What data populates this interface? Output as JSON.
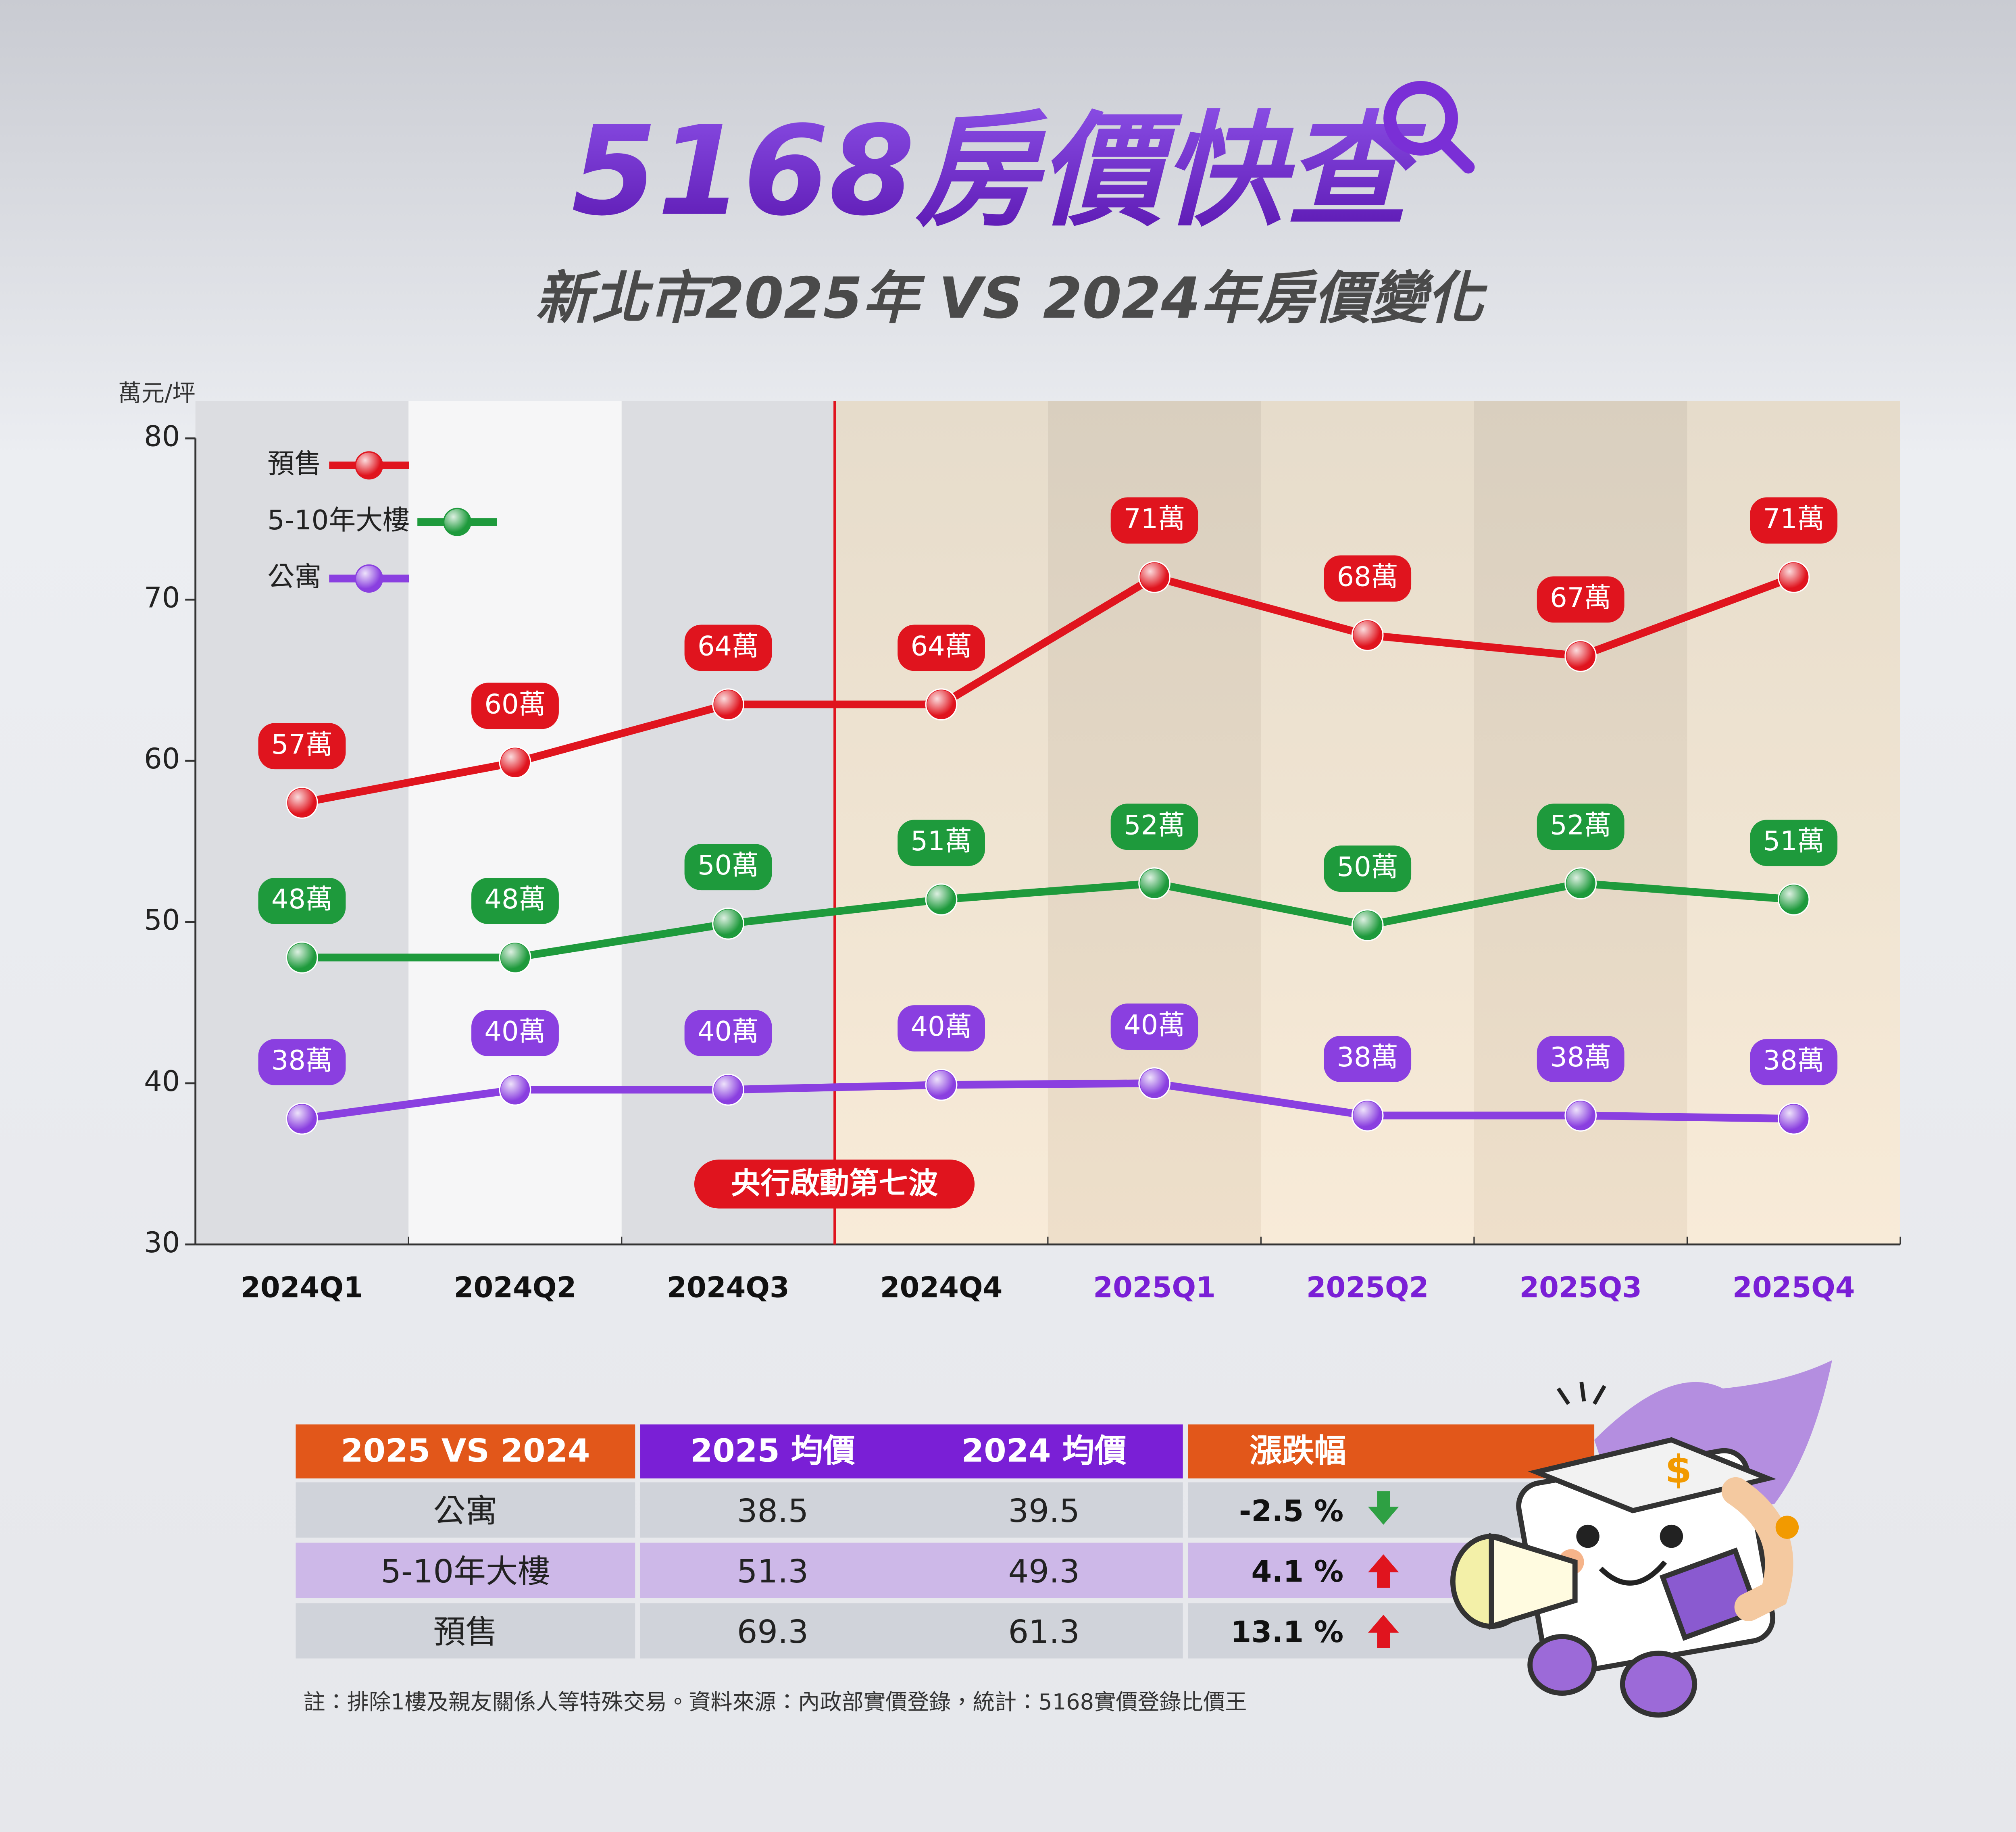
{
  "header": {
    "title": "5168房價快查",
    "subtitle": "新北市2025年 VS 2024年房價變化"
  },
  "chart_data": {
    "type": "line",
    "y_label": "萬元/坪",
    "categories": [
      "2024Q1",
      "2024Q2",
      "2024Q3",
      "2024Q4",
      "2025Q1",
      "2025Q2",
      "2025Q3",
      "2025Q4"
    ],
    "series": [
      {
        "name": "預售",
        "color": "#e0141e",
        "values": [
          57.4,
          59.9,
          63.5,
          63.5,
          71.4,
          67.8,
          66.5,
          71.4
        ],
        "value_labels": [
          "57萬",
          "60萬",
          "64萬",
          "64萬",
          "71萬",
          "68萬",
          "67萬",
          "71萬"
        ]
      },
      {
        "name": "5-10年大樓",
        "color": "#1e9a3c",
        "values": [
          47.8,
          47.8,
          49.9,
          51.4,
          52.4,
          49.8,
          52.4,
          51.4
        ],
        "value_labels": [
          "48萬",
          "48萬",
          "50萬",
          "51萬",
          "52萬",
          "50萬",
          "52萬",
          "51萬"
        ]
      },
      {
        "name": "公寓",
        "color": "#8a3fe0",
        "values": [
          37.8,
          39.6,
          39.6,
          39.9,
          40,
          38,
          38,
          37.8
        ],
        "value_labels": [
          "38萬",
          "40萬",
          "40萬",
          "40萬",
          "40萬",
          "38萬",
          "38萬",
          "38萬"
        ]
      }
    ],
    "ylim": [
      30,
      80
    ],
    "yticks": [
      30,
      40,
      50,
      60,
      70,
      80
    ],
    "legend": "upper left",
    "annotation": "央行啟動第七波"
  },
  "table": {
    "header": [
      "2025 VS 2024",
      "2025 均價",
      "2024 均價",
      "漲跌幅"
    ],
    "rows": [
      [
        "公寓",
        38.5,
        39.5,
        "-2.5 %"
      ],
      [
        "5-10年大樓",
        51.3,
        49.3,
        "4.1 %"
      ],
      [
        "預售",
        69.3,
        61.3,
        "13.1 %"
      ]
    ]
  },
  "footnote": "註：排除1樓及親友關係人等特殊交易。資料來源：內政部實價登錄，統計：5168實價登錄比價王"
}
